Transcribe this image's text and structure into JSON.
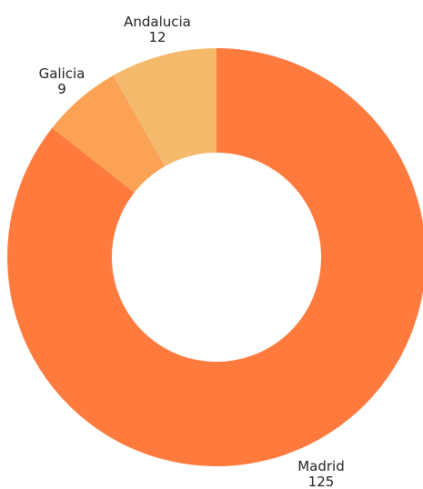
{
  "chart_data": {
    "type": "pie",
    "title": "",
    "donut": true,
    "slices": [
      {
        "label": "Madrid",
        "value": 125,
        "color": "#FF7A3D"
      },
      {
        "label": "Galicia",
        "value": 9,
        "color": "#FBA254"
      },
      {
        "label": "Andalucia",
        "value": 12,
        "color": "#F4B96B"
      }
    ],
    "legend": "none",
    "data_labels": "outside"
  }
}
